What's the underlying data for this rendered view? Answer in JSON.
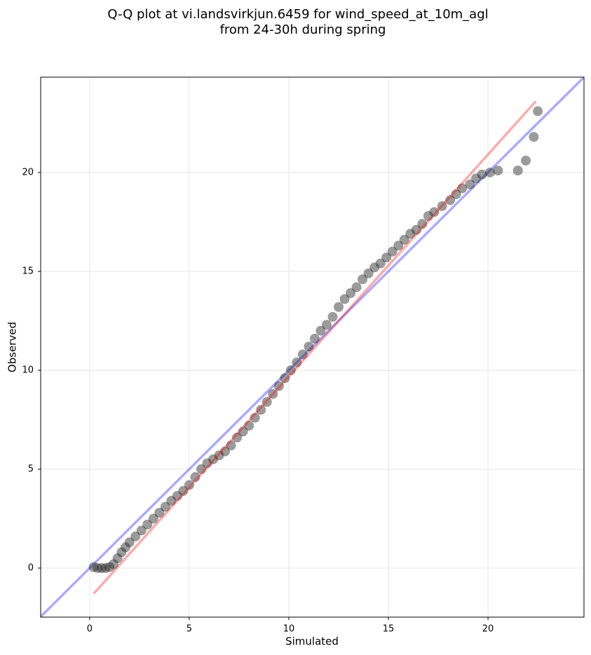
{
  "chart_data": {
    "type": "scatter",
    "title": [
      "Q-Q plot at vi.landsvirkjun.6459 for wind_speed_at_10m_agl",
      "from 24-30h during spring"
    ],
    "x_label": "Simulated",
    "y_label": "Observed",
    "xlim": [
      -2.46,
      24.82
    ],
    "ylim": [
      -2.48,
      24.82
    ],
    "xticks": [
      0,
      5,
      10,
      15,
      20
    ],
    "yticks": [
      0,
      5,
      10,
      15,
      20
    ],
    "grid": true,
    "point_opacity": 0.45,
    "series": [
      {
        "color": "#222222",
        "x": [
          0.2,
          0.4,
          0.6,
          0.8,
          1.0,
          1.2,
          1.4,
          1.6,
          1.8,
          2.0,
          2.3,
          2.6,
          2.9,
          3.2,
          3.5,
          3.8,
          4.1,
          4.4,
          4.7,
          5.0,
          5.3,
          5.6,
          5.9,
          6.2,
          6.5,
          6.8,
          7.1,
          7.4,
          7.7,
          8.0,
          8.3,
          8.6,
          8.9,
          9.2,
          9.5,
          9.8,
          10.1,
          10.4,
          10.7,
          11.0,
          11.3,
          11.6,
          11.9,
          12.2,
          12.5,
          12.8,
          13.1,
          13.4,
          13.7,
          14.0,
          14.3,
          14.6,
          14.9,
          15.2,
          15.5,
          15.8,
          16.1,
          16.4,
          16.7,
          17.0,
          17.3,
          17.7,
          18.1,
          18.4,
          18.7,
          19.1,
          19.4,
          19.7,
          20.1,
          20.5,
          21.5,
          21.9,
          22.3,
          22.5
        ],
        "values": [
          0.05,
          0,
          0,
          0,
          0.05,
          0.2,
          0.5,
          0.8,
          1.05,
          1.3,
          1.6,
          1.9,
          2.2,
          2.5,
          2.8,
          3.1,
          3.4,
          3.65,
          3.9,
          4.2,
          4.6,
          5.0,
          5.3,
          5.5,
          5.7,
          5.9,
          6.2,
          6.6,
          6.9,
          7.2,
          7.6,
          8.0,
          8.4,
          8.8,
          9.2,
          9.6,
          10.0,
          10.4,
          10.8,
          11.2,
          11.6,
          12.0,
          12.3,
          12.7,
          13.2,
          13.6,
          13.9,
          14.2,
          14.6,
          14.9,
          15.2,
          15.4,
          15.7,
          16.0,
          16.3,
          16.6,
          16.9,
          17.1,
          17.4,
          17.8,
          18.0,
          18.3,
          18.6,
          18.9,
          19.2,
          19.4,
          19.7,
          19.9,
          20.0,
          20.1,
          20.1,
          20.6,
          21.8,
          23.1
        ]
      }
    ],
    "fit_line": {
      "color": "#ff0000",
      "x": [
        0.2,
        22.4
      ],
      "values": [
        -1.3,
        23.6
      ]
    },
    "reference_line_color": "#0000ff"
  }
}
